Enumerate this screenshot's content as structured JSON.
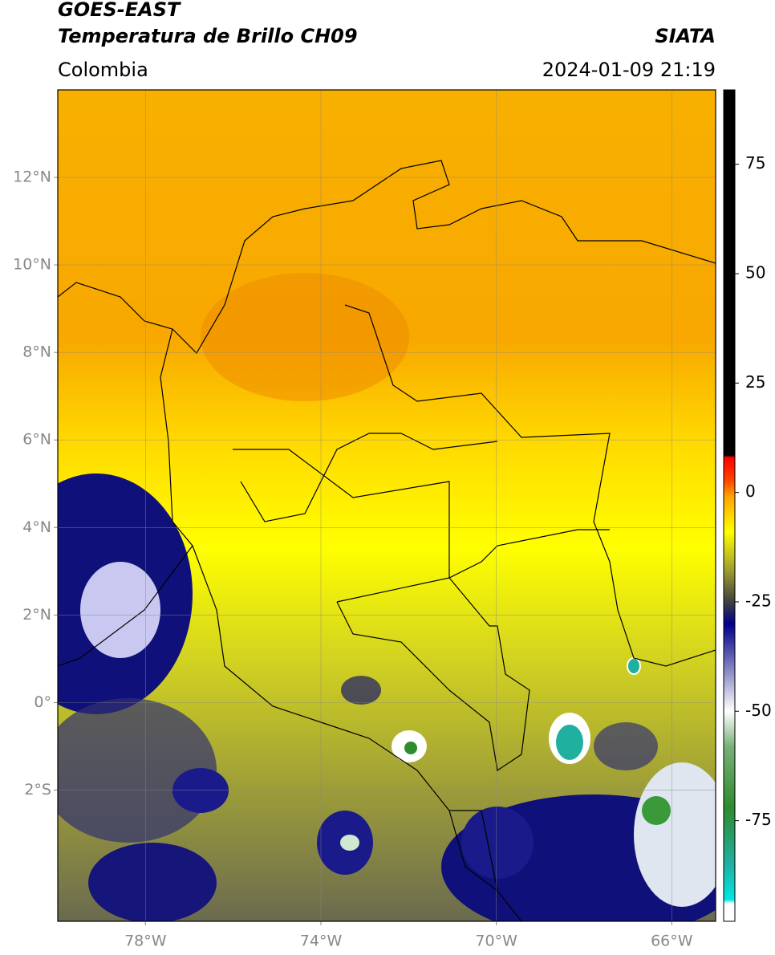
{
  "header": {
    "satellite": "GOES-EAST",
    "product": "Temperatura de Brillo CH09",
    "source": "SIATA",
    "region": "Colombia",
    "datetime": "2024-01-09 21:19"
  },
  "map": {
    "xlim": [
      -80,
      -65
    ],
    "ylim": [
      -5,
      14
    ],
    "xticks": [
      {
        "value": -78,
        "label": "78°W"
      },
      {
        "value": -74,
        "label": "74°W"
      },
      {
        "value": -70,
        "label": "70°W"
      },
      {
        "value": -66,
        "label": "66°W"
      }
    ],
    "yticks": [
      {
        "value": 12,
        "label": "12°N"
      },
      {
        "value": 10,
        "label": "10°N"
      },
      {
        "value": 8,
        "label": "8°N"
      },
      {
        "value": 6,
        "label": "6°N"
      },
      {
        "value": 4,
        "label": "4°N"
      },
      {
        "value": 2,
        "label": "2°N"
      },
      {
        "value": 0,
        "label": "0°"
      },
      {
        "value": -2,
        "label": "2°S"
      }
    ],
    "grid": true
  },
  "colorbar": {
    "lim": [
      -98,
      92
    ],
    "ticks": [
      75,
      50,
      25,
      0,
      -25,
      -50,
      -75
    ],
    "stops": [
      {
        "value": -98,
        "color": "#ffffff"
      },
      {
        "value": -94,
        "color": "#ffffff"
      },
      {
        "value": -93,
        "color": "#00e6e6"
      },
      {
        "value": -85,
        "color": "#20b0a0"
      },
      {
        "value": -72,
        "color": "#2e8b2e"
      },
      {
        "value": -58,
        "color": "#7ab07a"
      },
      {
        "value": -50,
        "color": "#ffffff"
      },
      {
        "value": -40,
        "color": "#8080c0"
      },
      {
        "value": -30,
        "color": "#00008b"
      },
      {
        "value": -25,
        "color": "#404040"
      },
      {
        "value": -18,
        "color": "#9a9a30"
      },
      {
        "value": -9,
        "color": "#ffff00"
      },
      {
        "value": -1,
        "color": "#ffa500"
      },
      {
        "value": 3,
        "color": "#ff4000"
      },
      {
        "value": 8,
        "color": "#ff0000"
      },
      {
        "value": 8.5,
        "color": "#000000"
      },
      {
        "value": 92,
        "color": "#000000"
      }
    ]
  }
}
